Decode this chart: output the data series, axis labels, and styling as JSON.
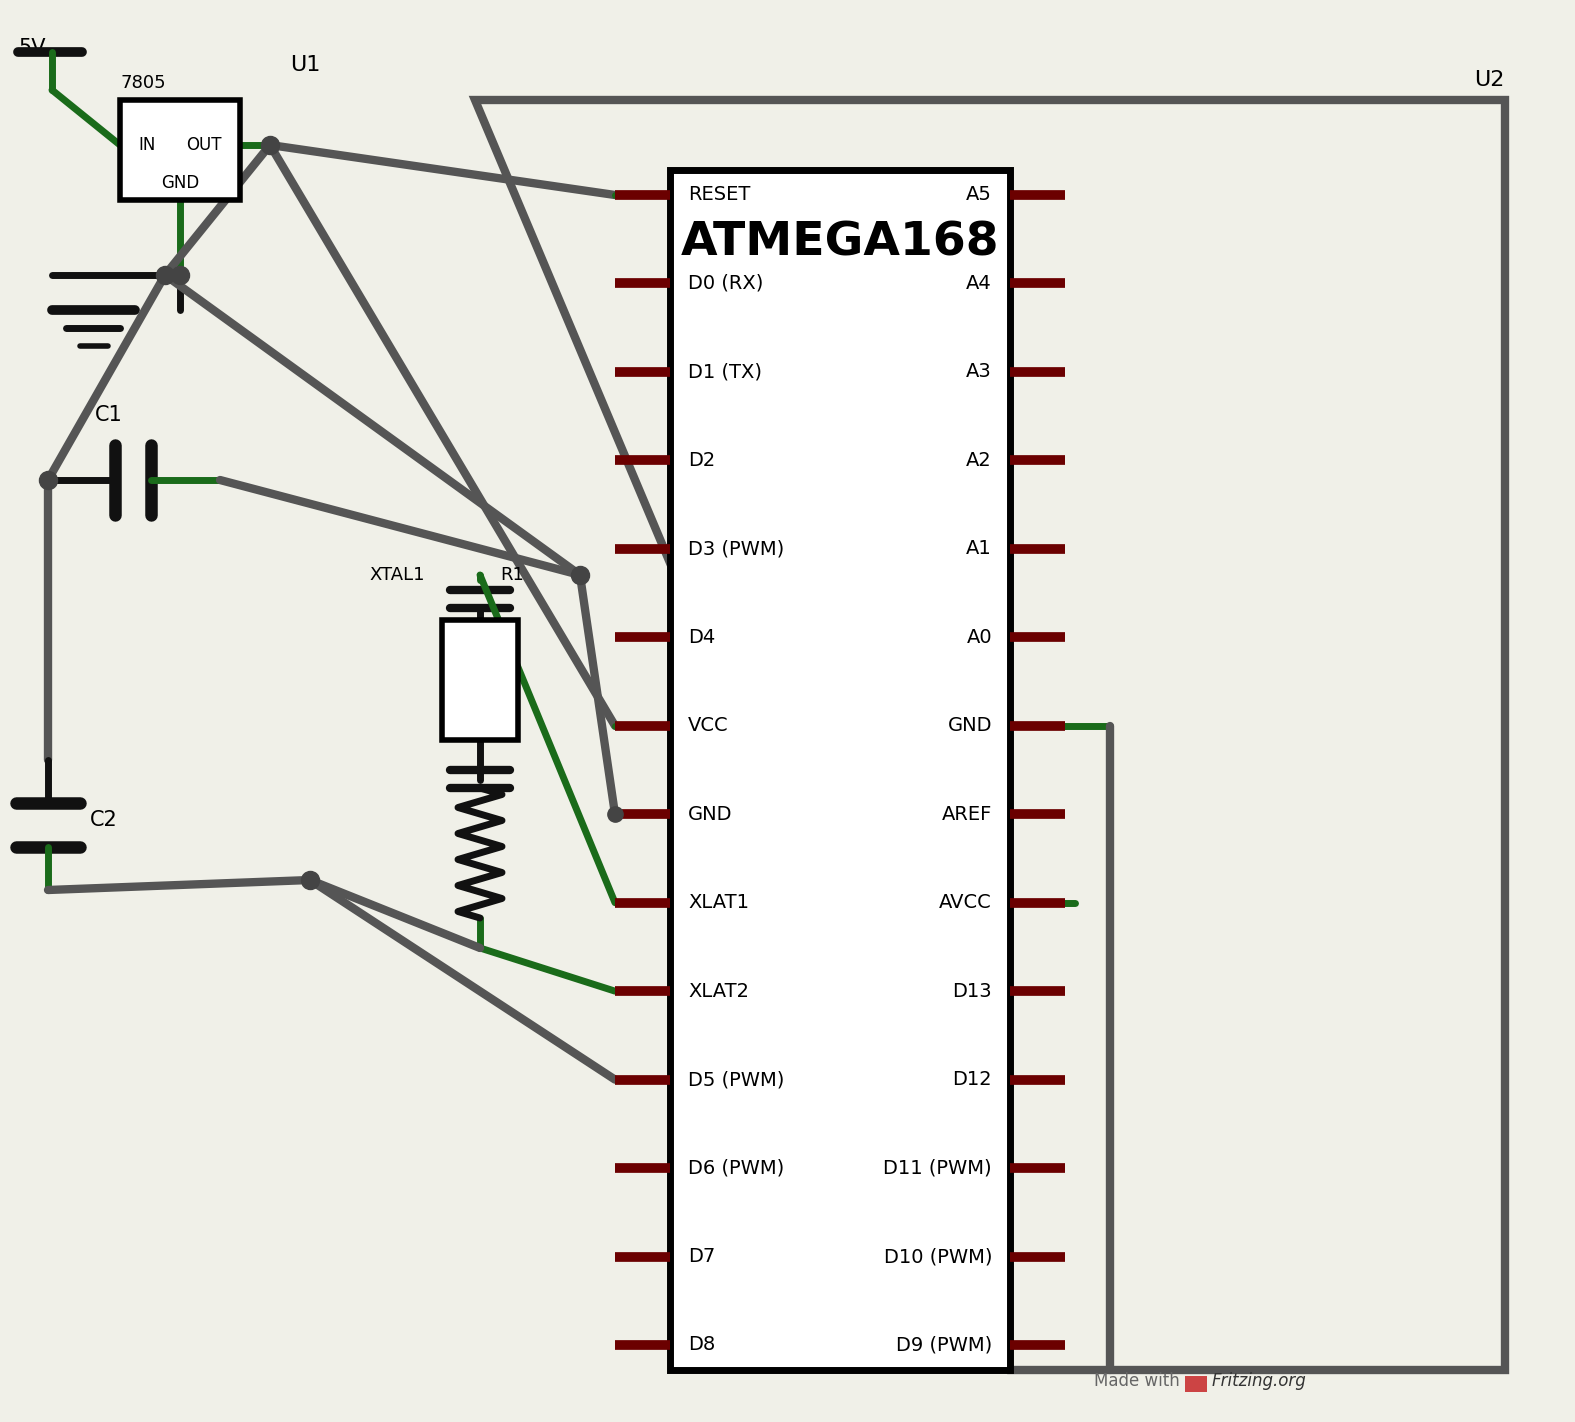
{
  "bg_color": "#f0f0e8",
  "wire_dark": "#555555",
  "wire_green": "#1a6b1a",
  "wire_black": "#111111",
  "pin_color": "#6b0000",
  "left_pins": [
    "RESET",
    "D0 (RX)",
    "D1 (TX)",
    "D2",
    "D3 (PWM)",
    "D4",
    "VCC",
    "GND",
    "XLAT1",
    "XLAT2",
    "D5 (PWM)",
    "D6 (PWM)",
    "D7",
    "D8"
  ],
  "right_pins": [
    "A5",
    "A4",
    "A3",
    "A2",
    "A1",
    "A0",
    "GND",
    "AREF",
    "AVCC",
    "D13",
    "D12",
    "D11 (PWM)",
    "D10 (PWM)",
    "D9 (PWM)"
  ],
  "ic_title": "ATMEGA168"
}
